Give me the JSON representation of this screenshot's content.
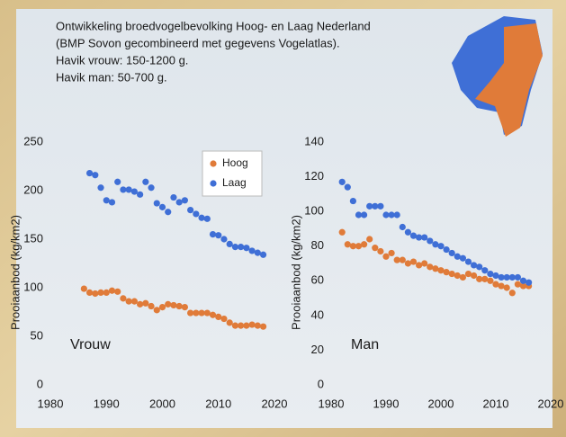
{
  "slide": {
    "lines": [
      "Ontwikkeling broedvogelbevolking Hoog- en Laag Nederland",
      "(BMP Sovon gecombineerd met gegevens Vogelatlas).",
      "Havik vrouw: 150-1200 g.",
      "Havik man: 50-700 g."
    ]
  },
  "chart_data": [
    {
      "type": "scatter",
      "y_label": "Prooiaanbod (kg/km2)",
      "annotation": "Vrouw",
      "legend": "upper-right",
      "xlim": [
        1980,
        2020
      ],
      "xticks": [
        1980,
        1990,
        2000,
        2010,
        2020
      ],
      "ylim": [
        0,
        250
      ],
      "yticks": [
        0,
        50,
        100,
        150,
        200,
        250
      ],
      "series": [
        {
          "name": "Hoog",
          "color": "#e07b39",
          "x": [
            1986,
            1987,
            1988,
            1989,
            1990,
            1991,
            1992,
            1993,
            1994,
            1995,
            1996,
            1997,
            1998,
            1999,
            2000,
            2001,
            2002,
            2003,
            2004,
            2005,
            2006,
            2007,
            2008,
            2009,
            2010,
            2011,
            2012,
            2013,
            2014,
            2015,
            2016,
            2017,
            2018
          ],
          "values": [
            99,
            95,
            94,
            95,
            95,
            97,
            96,
            89,
            86,
            86,
            83,
            84,
            81,
            77,
            80,
            83,
            82,
            81,
            80,
            74,
            74,
            74,
            74,
            72,
            70,
            68,
            64,
            61,
            61,
            61,
            62,
            61,
            60
          ]
        },
        {
          "name": "Laag",
          "color": "#3f6fd6",
          "x": [
            1987,
            1988,
            1989,
            1990,
            1991,
            1992,
            1993,
            1994,
            1995,
            1996,
            1997,
            1998,
            1999,
            2000,
            2001,
            2002,
            2003,
            2004,
            2005,
            2006,
            2007,
            2008,
            2009,
            2010,
            2011,
            2012,
            2013,
            2014,
            2015,
            2016,
            2017,
            2018
          ],
          "values": [
            218,
            216,
            203,
            190,
            188,
            209,
            201,
            201,
            199,
            196,
            209,
            203,
            187,
            183,
            178,
            193,
            188,
            190,
            180,
            176,
            172,
            171,
            155,
            154,
            150,
            145,
            142,
            142,
            141,
            138,
            136,
            134
          ]
        }
      ]
    },
    {
      "type": "scatter",
      "y_label": "Prooiaanbod (kg/km2)",
      "annotation": "Man",
      "xlim": [
        1980,
        2020
      ],
      "xticks": [
        1980,
        1990,
        2000,
        2010,
        2020
      ],
      "ylim": [
        0,
        140
      ],
      "yticks": [
        0,
        20,
        40,
        60,
        80,
        100,
        120,
        140
      ],
      "series": [
        {
          "color": "#e07b39",
          "x": [
            1982,
            1983,
            1984,
            1985,
            1986,
            1987,
            1988,
            1989,
            1990,
            1991,
            1992,
            1993,
            1994,
            1995,
            1996,
            1997,
            1998,
            1999,
            2000,
            2001,
            2002,
            2003,
            2004,
            2005,
            2006,
            2007,
            2008,
            2009,
            2010,
            2011,
            2012,
            2013,
            2014,
            2015,
            2016
          ],
          "values": [
            88,
            81,
            80,
            80,
            81,
            84,
            79,
            77,
            74,
            76,
            72,
            72,
            70,
            71,
            69,
            70,
            68,
            67,
            66,
            65,
            64,
            63,
            62,
            64,
            63,
            61,
            61,
            60,
            58,
            57,
            56,
            53,
            58,
            57,
            57
          ]
        },
        {
          "color": "#3f6fd6",
          "x": [
            1982,
            1983,
            1984,
            1985,
            1986,
            1987,
            1988,
            1989,
            1990,
            1991,
            1992,
            1993,
            1994,
            1995,
            1996,
            1997,
            1998,
            1999,
            2000,
            2001,
            2002,
            2003,
            2004,
            2005,
            2006,
            2007,
            2008,
            2009,
            2010,
            2011,
            2012,
            2013,
            2014,
            2015,
            2016
          ],
          "values": [
            117,
            114,
            106,
            98,
            98,
            103,
            103,
            103,
            98,
            98,
            98,
            91,
            88,
            86,
            85,
            85,
            83,
            81,
            80,
            78,
            76,
            74,
            73,
            71,
            69,
            68,
            66,
            64,
            63,
            62,
            62,
            62,
            62,
            60,
            59
          ]
        }
      ]
    }
  ]
}
